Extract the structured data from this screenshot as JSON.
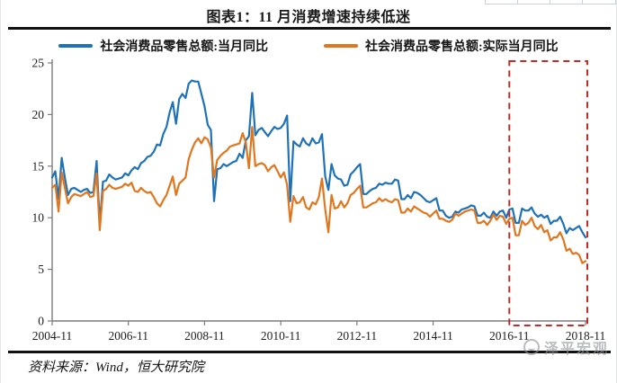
{
  "title": "图表1：11 月消费增速持续低迷",
  "legend": [
    {
      "label": "社会消费品零售总额:当月同比",
      "color": "#1f72b8"
    },
    {
      "label": "社会消费品零售总额:实际当月同比",
      "color": "#e0771f"
    }
  ],
  "source_note": "资料来源：Wind，恒大研究院",
  "watermark": "泽平宏观",
  "colors": {
    "nominal_line": "#1f72b8",
    "real_line": "#e0771f",
    "highlight_box": "#c42b26",
    "axis": "#7d7d7d",
    "tick_text": "#222222"
  },
  "chart_data": {
    "type": "line",
    "title": "图表1：11 月消费增速持续低迷",
    "xlabel": "",
    "ylabel": "",
    "x_start": "2004-11",
    "x_end": "2018-11",
    "x_count": 169,
    "ylim": [
      0,
      25
    ],
    "yticks": [
      0,
      5,
      10,
      15,
      20,
      25
    ],
    "xtick_indices": [
      0,
      24,
      48,
      72,
      96,
      120,
      144,
      168
    ],
    "xtick_labels": [
      "2004-11",
      "2006-11",
      "2008-11",
      "2010-11",
      "2012-11",
      "2014-11",
      "2016-11",
      "2018-11"
    ],
    "grid": false,
    "legend_position": "top",
    "highlight_box": {
      "from_index": 144,
      "to_index": 168,
      "from_label": "2016-11",
      "to_label": "2018-11",
      "color": "#c42b26",
      "style": "dashed"
    },
    "series": [
      {
        "name": "社会消费品零售总额:当月同比",
        "color": "#1f72b8",
        "values": [
          13.9,
          14.5,
          11.8,
          15.8,
          13.9,
          12.2,
          12.8,
          12.9,
          12.7,
          12.5,
          12.7,
          12.8,
          12.4,
          12.5,
          15.5,
          9.4,
          13.5,
          13.6,
          14.2,
          13.9,
          13.7,
          13.8,
          13.9,
          14.3,
          14.1,
          14.6,
          14.9,
          14.7,
          15.3,
          15.5,
          15.9,
          16.0,
          16.4,
          17.1,
          17.0,
          18.1,
          18.8,
          20.2,
          21.2,
          19.1,
          21.5,
          22.0,
          21.6,
          23.0,
          23.3,
          23.2,
          23.2,
          22.0,
          20.8,
          19.0,
          18.5,
          11.6,
          14.7,
          14.8,
          15.2,
          15.0,
          15.2,
          15.4,
          15.5,
          16.2,
          15.8,
          17.5,
          17.9,
          22.1,
          18.0,
          18.5,
          18.7,
          18.3,
          17.9,
          18.4,
          18.8,
          18.6,
          18.7,
          19.1,
          19.9,
          11.6,
          17.4,
          17.1,
          16.9,
          17.7,
          17.2,
          17.0,
          17.7,
          17.2,
          17.3,
          18.1,
          14.0,
          12.7,
          15.2,
          14.1,
          13.8,
          13.7,
          13.1,
          13.2,
          14.2,
          14.5,
          14.9,
          15.2,
          12.3,
          12.3,
          12.6,
          12.8,
          12.9,
          13.3,
          13.2,
          13.4,
          13.3,
          13.3,
          13.7,
          13.6,
          11.8,
          11.8,
          12.2,
          11.9,
          12.5,
          12.4,
          12.2,
          11.9,
          11.6,
          11.5,
          11.7,
          11.9,
          10.7,
          10.7,
          10.2,
          10.0,
          10.1,
          10.6,
          10.5,
          10.8,
          10.9,
          11.0,
          11.2,
          11.1,
          10.2,
          10.2,
          10.5,
          10.1,
          10.0,
          10.6,
          10.2,
          10.6,
          10.7,
          10.0,
          10.8,
          10.9,
          9.5,
          9.5,
          10.9,
          10.7,
          10.7,
          11.0,
          10.4,
          10.1,
          10.3,
          10.0,
          10.2,
          9.4,
          9.7,
          9.7,
          10.1,
          9.4,
          8.5,
          9.0,
          8.8,
          9.0,
          9.2,
          8.6,
          8.1
        ]
      },
      {
        "name": "社会消费品零售总额:实际当月同比",
        "color": "#e0771f",
        "values": [
          12.9,
          13.2,
          10.6,
          14.4,
          12.9,
          11.4,
          12.0,
          12.3,
          12.2,
          12.1,
          12.3,
          12.5,
          12.0,
          12.1,
          14.3,
          8.8,
          12.6,
          12.8,
          13.2,
          12.9,
          12.8,
          12.9,
          13.0,
          13.3,
          13.1,
          13.4,
          12.6,
          12.5,
          12.9,
          12.6,
          12.4,
          12.5,
          12.0,
          11.4,
          11.1,
          11.7,
          12.2,
          13.1,
          14.0,
          12.2,
          13.3,
          13.6,
          13.9,
          15.7,
          16.6,
          17.3,
          17.7,
          17.2,
          17.8,
          17.6,
          16.8,
          13.9,
          15.6,
          16.0,
          16.3,
          16.5,
          16.9,
          17.0,
          17.1,
          17.2,
          18.2,
          17.3,
          14.8,
          18.8,
          15.0,
          15.2,
          15.3,
          15.1,
          14.5,
          14.9,
          15.1,
          14.5,
          13.9,
          14.4,
          13.2,
          9.6,
          12.1,
          11.4,
          11.5,
          12.0,
          11.0,
          10.8,
          11.5,
          11.3,
          12.0,
          13.8,
          10.8,
          8.6,
          12.2,
          10.9,
          11.0,
          11.6,
          11.0,
          11.4,
          12.2,
          12.4,
          12.8,
          13.1,
          11.0,
          11.0,
          11.2,
          11.4,
          11.5,
          11.9,
          11.6,
          11.8,
          11.6,
          11.5,
          11.8,
          11.7,
          10.5,
          10.5,
          10.9,
          10.6,
          11.1,
          10.9,
          10.7,
          10.5,
          10.4,
          10.1,
          10.4,
          10.7,
          9.9,
          9.9,
          9.7,
          9.6,
          9.8,
          10.4,
          10.2,
          10.4,
          10.6,
          10.7,
          10.8,
          10.7,
          9.5,
          9.5,
          9.7,
          9.3,
          9.7,
          10.3,
          9.8,
          10.2,
          10.1,
          9.4,
          9.9,
          10.0,
          8.3,
          8.3,
          9.7,
          9.3,
          9.5,
          10.0,
          9.2,
          8.9,
          9.3,
          8.6,
          8.8,
          7.8,
          8.1,
          8.1,
          8.6,
          7.9,
          6.8,
          7.0,
          6.5,
          6.6,
          6.4,
          5.6,
          5.8
        ]
      }
    ]
  }
}
